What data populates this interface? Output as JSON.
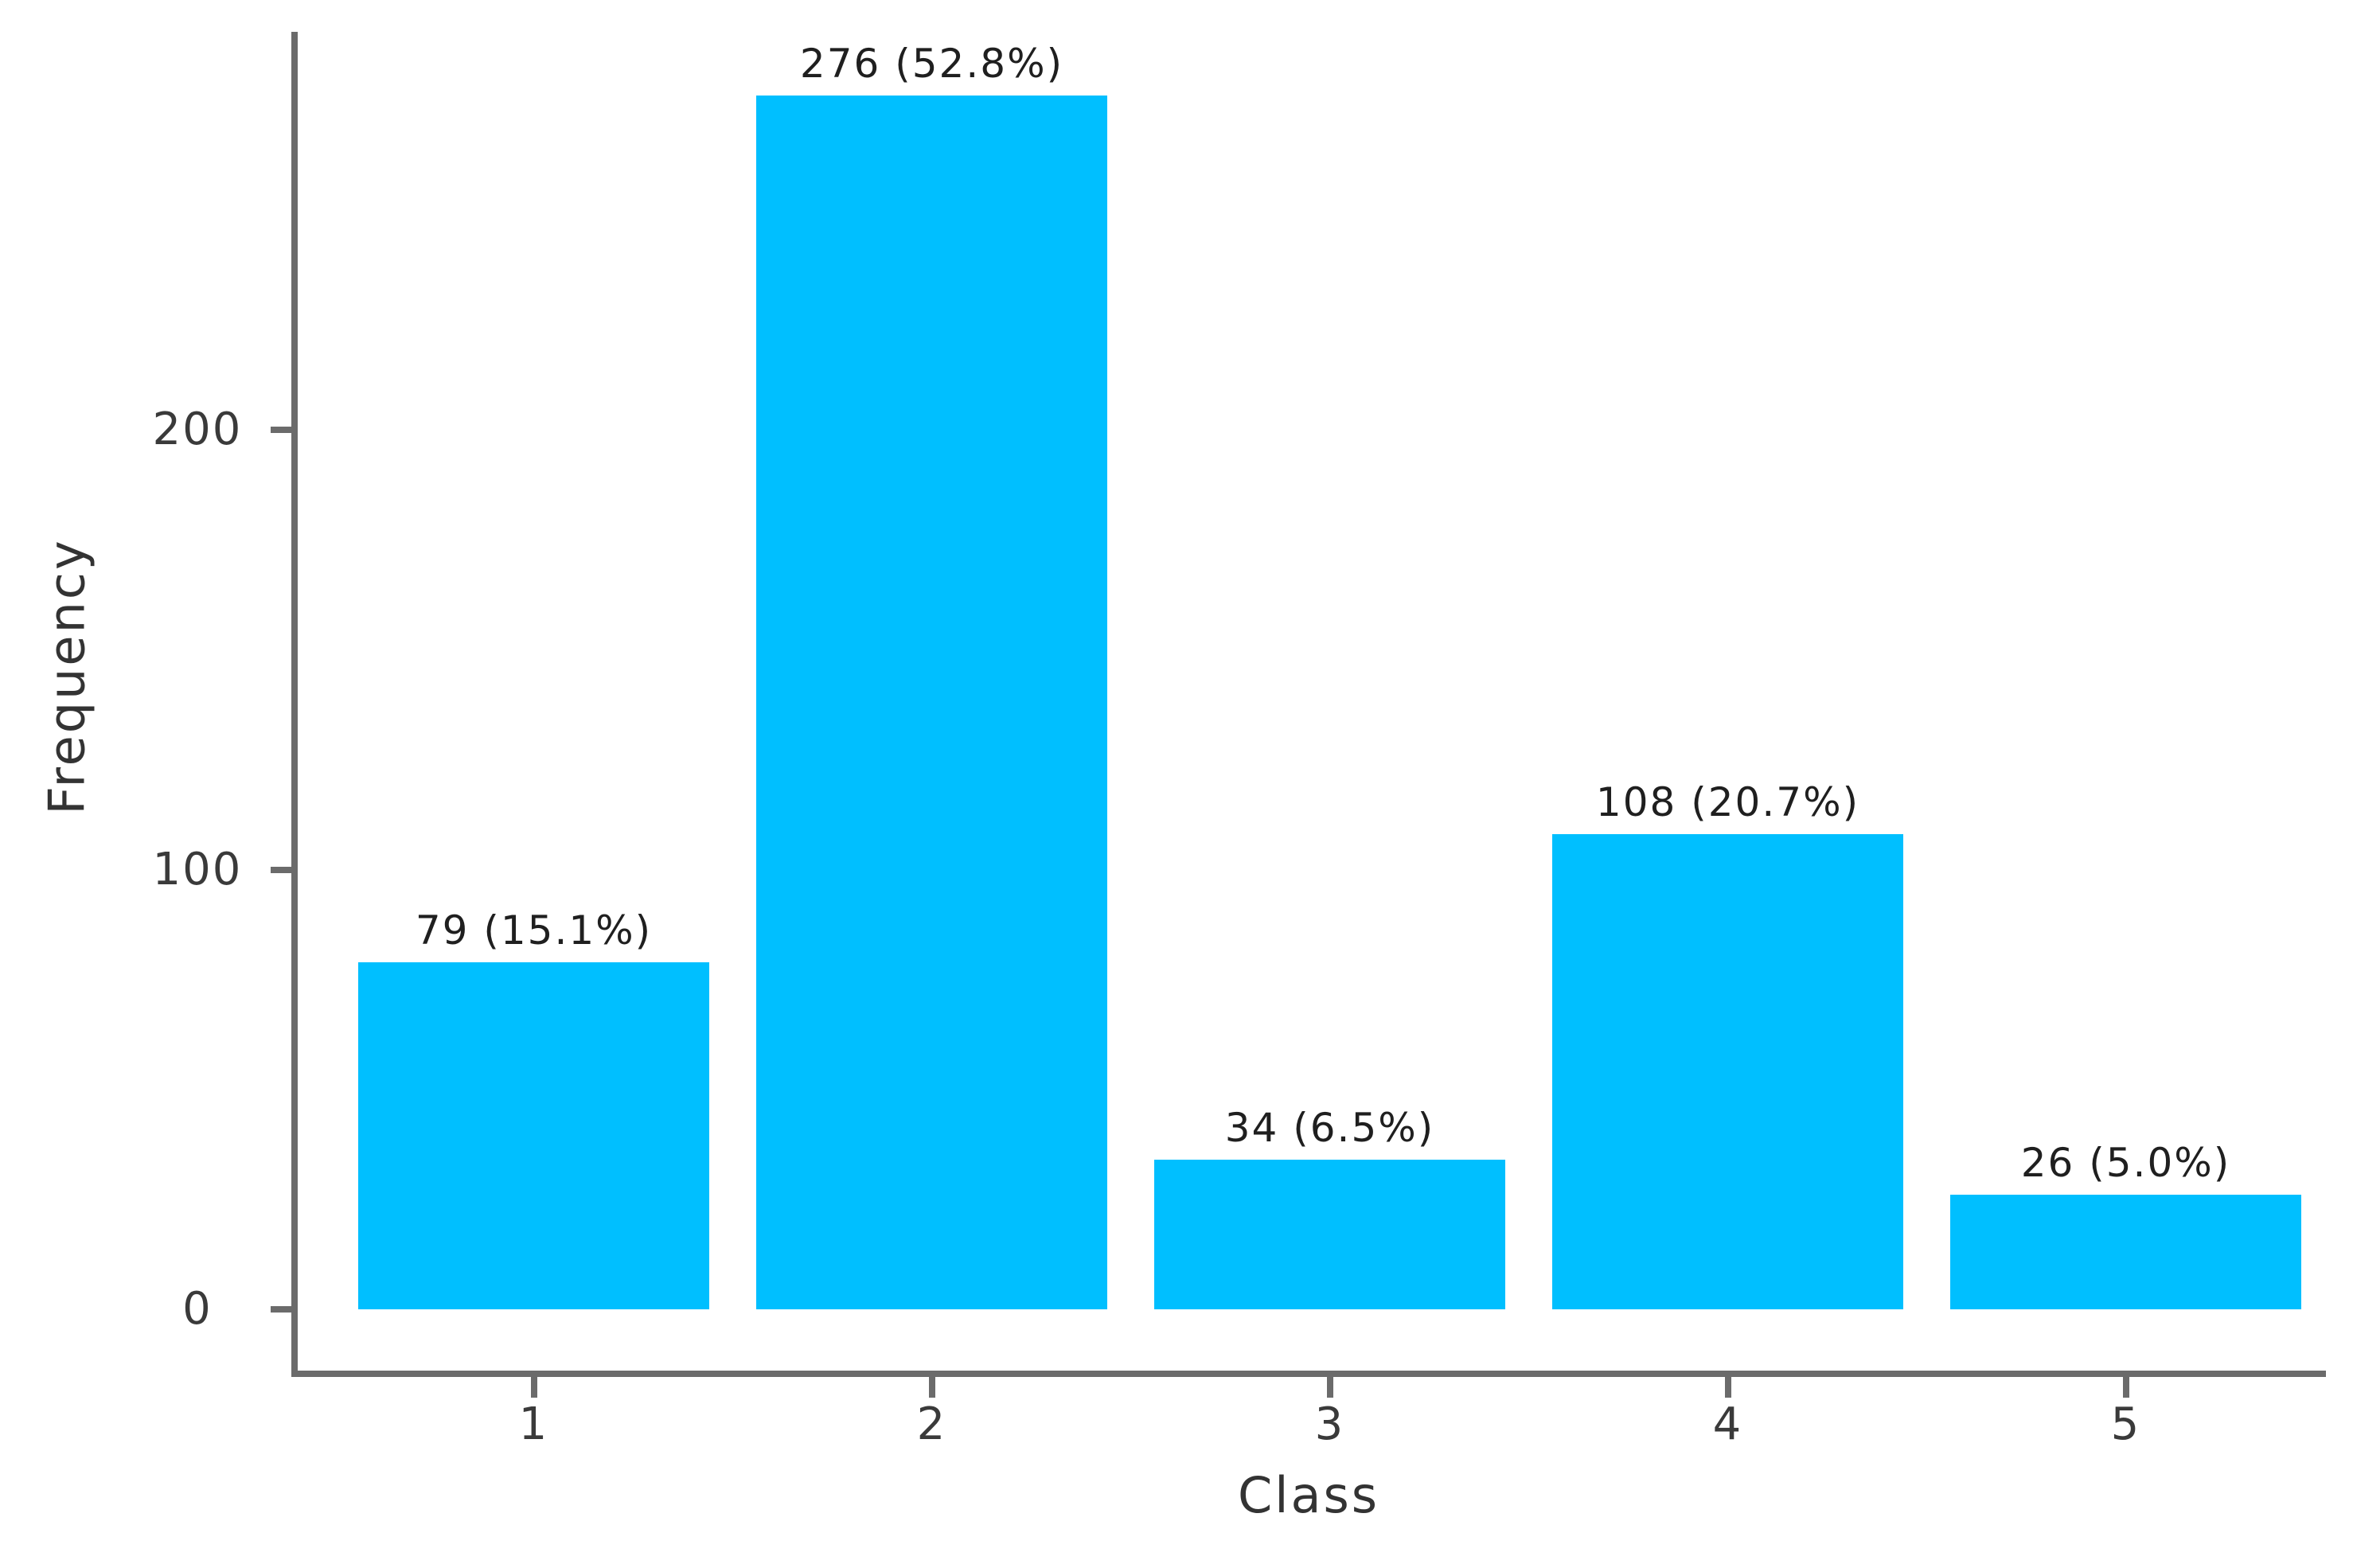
{
  "chart_data": {
    "type": "bar",
    "title": "",
    "xlabel": "Class",
    "ylabel": "Frequency",
    "categories": [
      "1",
      "2",
      "3",
      "4",
      "5"
    ],
    "values": [
      79,
      276,
      34,
      108,
      26
    ],
    "bar_labels": [
      "79 (15.1%)",
      "276 (52.8%)",
      "34 (6.5%)",
      "108 (20.7%)",
      "26 (5.0%)"
    ],
    "percentages": [
      15.1,
      52.8,
      6.5,
      20.7,
      5.0
    ],
    "y_ticks": [
      0,
      100,
      200
    ],
    "ylim": [
      0,
      290
    ],
    "grid": false,
    "legend": null,
    "bar_color": "#00BFFF",
    "axis_color": "#6B6B6B",
    "tick_text_color": "#3A3A3A",
    "bar_label_color": "#1F1F1F",
    "title_text_color": "#333333"
  }
}
